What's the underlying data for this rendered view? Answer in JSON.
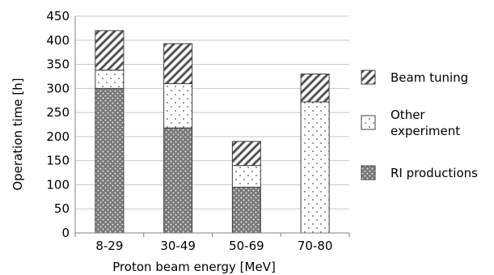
{
  "chart_data": {
    "type": "bar",
    "stacked": true,
    "categories": [
      "8-29",
      "30-49",
      "50-69",
      "70-80"
    ],
    "series": [
      {
        "name": "RI productions",
        "values": [
          300,
          218,
          95,
          0
        ],
        "pattern": "dense-dots",
        "color": "#7a7a7a"
      },
      {
        "name": "Other experiment",
        "values": [
          38,
          92,
          45,
          272
        ],
        "pattern": "sparse-dots",
        "color": "#ffffff"
      },
      {
        "name": "Beam tuning",
        "values": [
          82,
          83,
          50,
          58
        ],
        "pattern": "diagonal-hatch",
        "color": "#ffffff"
      }
    ],
    "legend_entries": [
      {
        "series": 2,
        "lines": [
          "Beam tuning"
        ]
      },
      {
        "series": 1,
        "lines": [
          "Other",
          "experiment"
        ]
      },
      {
        "series": 0,
        "lines": [
          "RI productions"
        ]
      }
    ],
    "title": "",
    "xlabel": "Proton beam energy [MeV]",
    "ylabel": "Operation time [h]",
    "ylim": [
      0,
      450
    ],
    "yticks": [
      0,
      50,
      100,
      150,
      200,
      250,
      300,
      350,
      400,
      450
    ],
    "grid": "horizontal",
    "legend_position": "right"
  }
}
